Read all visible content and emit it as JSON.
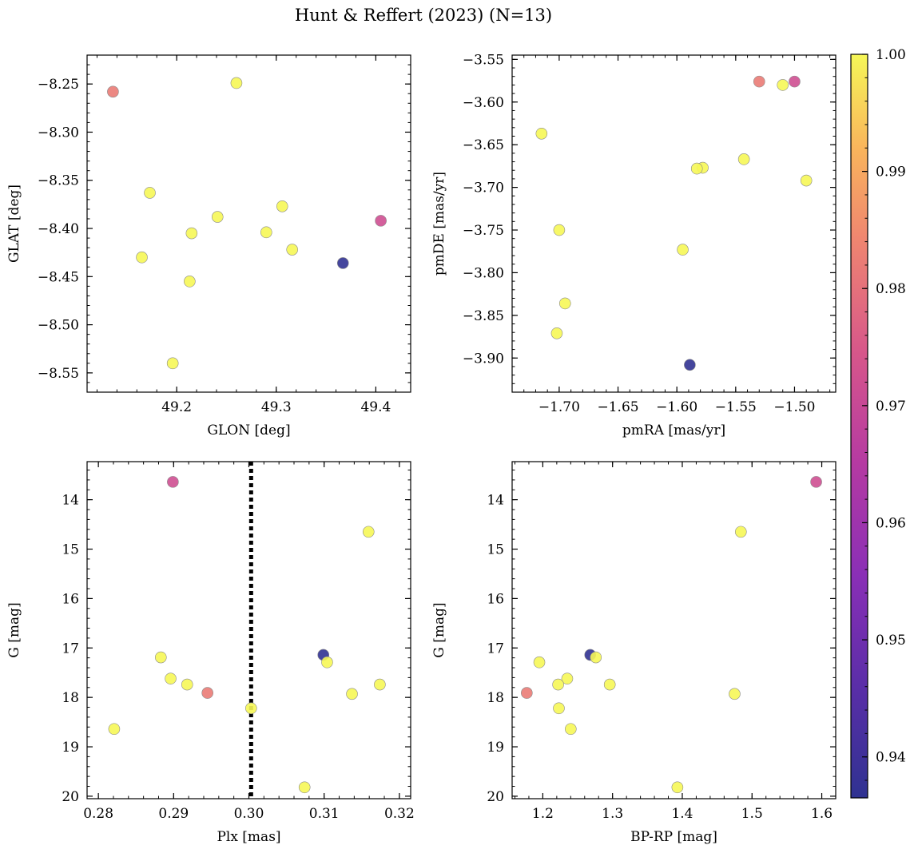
{
  "figure_title": "Hunt & Reffert (2023) (N=13)",
  "colorbar": {
    "colormap": "plasma",
    "range": [
      0.9365,
      1.0
    ],
    "ticks": [
      0.94,
      0.95,
      0.96,
      0.97,
      0.98,
      0.99,
      1.0
    ],
    "tick_labels": [
      "0.94",
      "0.95",
      "0.96",
      "0.97",
      "0.98",
      "0.99",
      "1.00"
    ]
  },
  "chart_data": [
    {
      "id": "glon-glat",
      "type": "scatter",
      "xlabel": "GLON [deg]",
      "ylabel": "GLAT [deg]",
      "xlim": [
        49.11,
        49.435
      ],
      "ylim": [
        -8.57,
        -8.22
      ],
      "y_inverted": false,
      "xticks": [
        49.2,
        49.3,
        49.4
      ],
      "xtick_labels": [
        "49.2",
        "49.3",
        "49.4"
      ],
      "yticks": [
        -8.55,
        -8.5,
        -8.45,
        -8.4,
        -8.35,
        -8.3,
        -8.25
      ],
      "ytick_labels": [
        "−8.55",
        "−8.50",
        "−8.45",
        "−8.40",
        "−8.35",
        "−8.30",
        "−8.25"
      ],
      "points": [
        {
          "x": 49.136,
          "y": -8.258,
          "c": 0.982
        },
        {
          "x": 49.26,
          "y": -8.249,
          "c": 1.0
        },
        {
          "x": 49.173,
          "y": -8.363,
          "c": 1.0
        },
        {
          "x": 49.306,
          "y": -8.377,
          "c": 1.0
        },
        {
          "x": 49.241,
          "y": -8.388,
          "c": 1.0
        },
        {
          "x": 49.29,
          "y": -8.404,
          "c": 1.0
        },
        {
          "x": 49.215,
          "y": -8.405,
          "c": 1.0
        },
        {
          "x": 49.405,
          "y": -8.392,
          "c": 0.972
        },
        {
          "x": 49.316,
          "y": -8.422,
          "c": 1.0
        },
        {
          "x": 49.165,
          "y": -8.43,
          "c": 1.0
        },
        {
          "x": 49.367,
          "y": -8.436,
          "c": 0.937
        },
        {
          "x": 49.213,
          "y": -8.455,
          "c": 1.0
        },
        {
          "x": 49.196,
          "y": -8.54,
          "c": 1.0
        }
      ]
    },
    {
      "id": "pmra-pmde",
      "type": "scatter",
      "xlabel": "pmRA [mas/yr]",
      "ylabel": "pmDE [mas/yr]",
      "xlim": [
        -1.74,
        -1.465
      ],
      "ylim": [
        -3.94,
        -3.545
      ],
      "y_inverted": false,
      "xticks": [
        -1.7,
        -1.65,
        -1.6,
        -1.55,
        -1.5
      ],
      "xtick_labels": [
        "−1.70",
        "−1.65",
        "−1.60",
        "−1.55",
        "−1.50"
      ],
      "yticks": [
        -3.9,
        -3.85,
        -3.8,
        -3.75,
        -3.7,
        -3.65,
        -3.6,
        -3.55
      ],
      "ytick_labels": [
        "−3.90",
        "−3.85",
        "−3.80",
        "−3.75",
        "−3.70",
        "−3.65",
        "−3.60",
        "−3.55"
      ],
      "points": [
        {
          "x": -1.53,
          "y": -3.576,
          "c": 0.982
        },
        {
          "x": -1.5,
          "y": -3.576,
          "c": 0.972
        },
        {
          "x": -1.51,
          "y": -3.58,
          "c": 1.0
        },
        {
          "x": -1.715,
          "y": -3.637,
          "c": 1.0
        },
        {
          "x": -1.543,
          "y": -3.667,
          "c": 1.0
        },
        {
          "x": -1.578,
          "y": -3.677,
          "c": 1.0
        },
        {
          "x": -1.583,
          "y": -3.678,
          "c": 1.0
        },
        {
          "x": -1.49,
          "y": -3.692,
          "c": 1.0
        },
        {
          "x": -1.7,
          "y": -3.75,
          "c": 1.0
        },
        {
          "x": -1.595,
          "y": -3.773,
          "c": 1.0
        },
        {
          "x": -1.695,
          "y": -3.836,
          "c": 1.0
        },
        {
          "x": -1.702,
          "y": -3.871,
          "c": 1.0
        },
        {
          "x": -1.589,
          "y": -3.908,
          "c": 0.937
        }
      ]
    },
    {
      "id": "plx-g",
      "type": "scatter",
      "xlabel": "Plx [mas]",
      "ylabel": "G [mag]",
      "xlim": [
        0.2785,
        0.3215
      ],
      "ylim": [
        13.23,
        20.05
      ],
      "y_inverted": true,
      "xticks": [
        0.28,
        0.29,
        0.3,
        0.31,
        0.32
      ],
      "xtick_labels": [
        "0.28",
        "0.29",
        "0.30",
        "0.31",
        "0.32"
      ],
      "yticks": [
        14,
        15,
        16,
        17,
        18,
        19,
        20
      ],
      "ytick_labels": [
        "14",
        "15",
        "16",
        "17",
        "18",
        "19",
        "20"
      ],
      "vline": {
        "x": 0.3003,
        "style": "dotted"
      },
      "points": [
        {
          "x": 0.2899,
          "y": 13.64,
          "c": 0.972
        },
        {
          "x": 0.3159,
          "y": 14.65,
          "c": 1.0
        },
        {
          "x": 0.3099,
          "y": 17.14,
          "c": 0.937
        },
        {
          "x": 0.2883,
          "y": 17.19,
          "c": 1.0
        },
        {
          "x": 0.3104,
          "y": 17.29,
          "c": 1.0
        },
        {
          "x": 0.2896,
          "y": 17.62,
          "c": 1.0
        },
        {
          "x": 0.2918,
          "y": 17.74,
          "c": 1.0
        },
        {
          "x": 0.3174,
          "y": 17.74,
          "c": 1.0
        },
        {
          "x": 0.2945,
          "y": 17.91,
          "c": 0.982
        },
        {
          "x": 0.3137,
          "y": 17.93,
          "c": 1.0
        },
        {
          "x": 0.3003,
          "y": 18.22,
          "c": 1.0
        },
        {
          "x": 0.2821,
          "y": 18.64,
          "c": 1.0
        },
        {
          "x": 0.3074,
          "y": 19.82,
          "c": 1.0
        }
      ]
    },
    {
      "id": "bprp-g",
      "type": "scatter",
      "xlabel": "BP-RP [mag]",
      "ylabel": "G [mag]",
      "xlim": [
        1.156,
        1.62
      ],
      "ylim": [
        13.23,
        20.05
      ],
      "y_inverted": true,
      "xticks": [
        1.2,
        1.3,
        1.4,
        1.5,
        1.6
      ],
      "xtick_labels": [
        "1.2",
        "1.3",
        "1.4",
        "1.5",
        "1.6"
      ],
      "yticks": [
        14,
        15,
        16,
        17,
        18,
        19,
        20
      ],
      "ytick_labels": [
        "14",
        "15",
        "16",
        "17",
        "18",
        "19",
        "20"
      ],
      "points": [
        {
          "x": 1.592,
          "y": 13.64,
          "c": 0.972
        },
        {
          "x": 1.484,
          "y": 14.65,
          "c": 1.0
        },
        {
          "x": 1.268,
          "y": 17.14,
          "c": 0.937
        },
        {
          "x": 1.276,
          "y": 17.19,
          "c": 1.0
        },
        {
          "x": 1.195,
          "y": 17.29,
          "c": 1.0
        },
        {
          "x": 1.235,
          "y": 17.62,
          "c": 1.0
        },
        {
          "x": 1.222,
          "y": 17.74,
          "c": 1.0
        },
        {
          "x": 1.296,
          "y": 17.74,
          "c": 1.0
        },
        {
          "x": 1.177,
          "y": 17.91,
          "c": 0.982
        },
        {
          "x": 1.475,
          "y": 17.93,
          "c": 1.0
        },
        {
          "x": 1.223,
          "y": 18.22,
          "c": 1.0
        },
        {
          "x": 1.24,
          "y": 18.64,
          "c": 1.0
        },
        {
          "x": 1.393,
          "y": 19.82,
          "c": 1.0
        }
      ]
    }
  ]
}
